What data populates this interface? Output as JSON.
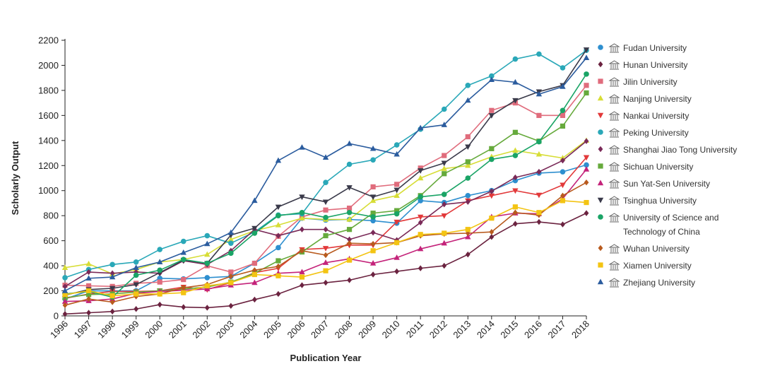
{
  "chart_data": {
    "type": "line",
    "title": "",
    "xlabel": "Publication Year",
    "ylabel": "Scholarly Output",
    "ylim": [
      0,
      2200
    ],
    "yticks": [
      0,
      200,
      400,
      600,
      800,
      1000,
      1200,
      1400,
      1600,
      1800,
      2000,
      2200
    ],
    "grid": false,
    "legend_position": "right",
    "categories": [
      "1996",
      "1997",
      "1998",
      "1999",
      "2000",
      "2001",
      "2002",
      "2003",
      "2004",
      "2005",
      "2006",
      "2007",
      "2008",
      "2009",
      "2010",
      "2011",
      "2012",
      "2013",
      "2014",
      "2015",
      "2016",
      "2017",
      "2018"
    ],
    "series": [
      {
        "name": "Fudan University",
        "color": "#2e8fcf",
        "marker": "circle",
        "values": [
          135,
          200,
          200,
          200,
          300,
          295,
          305,
          315,
          420,
          545,
          780,
          765,
          770,
          760,
          740,
          920,
          905,
          960,
          1000,
          1080,
          1140,
          1150,
          1205
        ]
      },
      {
        "name": "Hunan University",
        "color": "#6b2340",
        "marker": "diamond",
        "values": [
          15,
          25,
          35,
          55,
          90,
          70,
          65,
          80,
          130,
          175,
          245,
          265,
          285,
          330,
          355,
          380,
          400,
          490,
          630,
          735,
          750,
          730,
          820
        ]
      },
      {
        "name": "Jilin University",
        "color": "#e06c7c",
        "marker": "square",
        "values": [
          245,
          240,
          235,
          260,
          270,
          290,
          400,
          350,
          420,
          635,
          790,
          845,
          860,
          1030,
          1050,
          1180,
          1280,
          1430,
          1640,
          1700,
          1600,
          1600,
          1840
        ]
      },
      {
        "name": "Nanjing University",
        "color": "#d7dd36",
        "marker": "triangle-up",
        "values": [
          385,
          415,
          335,
          370,
          430,
          450,
          490,
          610,
          680,
          725,
          780,
          770,
          770,
          920,
          960,
          1100,
          1175,
          1200,
          1270,
          1320,
          1290,
          1260,
          1400
        ]
      },
      {
        "name": "Nankai University",
        "color": "#e2393a",
        "marker": "triangle-down",
        "values": [
          140,
          175,
          195,
          195,
          200,
          230,
          210,
          265,
          345,
          380,
          530,
          540,
          565,
          565,
          750,
          790,
          800,
          920,
          960,
          1000,
          965,
          1045,
          1265
        ]
      },
      {
        "name": "Peking University",
        "color": "#2aa8b8",
        "marker": "circle",
        "values": [
          305,
          370,
          410,
          430,
          530,
          595,
          640,
          580,
          670,
          805,
          815,
          1065,
          1210,
          1245,
          1365,
          1490,
          1650,
          1840,
          1915,
          2050,
          2090,
          1980,
          2120
        ]
      },
      {
        "name": "Shanghai Jiao Tong University",
        "color": "#7a2a58",
        "marker": "diamond",
        "values": [
          235,
          350,
          340,
          350,
          340,
          440,
          410,
          520,
          690,
          640,
          690,
          690,
          610,
          665,
          605,
          745,
          890,
          910,
          995,
          1105,
          1150,
          1240,
          1395
        ]
      },
      {
        "name": "Sichuan University",
        "color": "#66aa3c",
        "marker": "square",
        "values": [
          145,
          170,
          175,
          190,
          200,
          215,
          230,
          270,
          340,
          440,
          510,
          640,
          690,
          820,
          840,
          960,
          1135,
          1230,
          1335,
          1465,
          1395,
          1515,
          1780
        ]
      },
      {
        "name": "Sun Yat-Sen University",
        "color": "#c4237a",
        "marker": "triangle-up",
        "values": [
          115,
          120,
          135,
          180,
          195,
          205,
          215,
          245,
          265,
          340,
          350,
          425,
          455,
          420,
          465,
          535,
          580,
          630,
          790,
          820,
          815,
          935,
          1170
        ]
      },
      {
        "name": "Tsinghua University",
        "color": "#3a3a4a",
        "marker": "triangle-down",
        "values": [
          165,
          210,
          220,
          250,
          345,
          445,
          420,
          645,
          700,
          870,
          950,
          910,
          1025,
          950,
          1005,
          1160,
          1220,
          1350,
          1600,
          1720,
          1790,
          1840,
          2125
        ]
      },
      {
        "name": "University of Science and Technology of China",
        "color": "#1aa466",
        "marker": "circle",
        "values": [
          175,
          195,
          150,
          325,
          365,
          450,
          420,
          500,
          660,
          800,
          825,
          785,
          825,
          790,
          815,
          950,
          970,
          1100,
          1250,
          1280,
          1390,
          1640,
          1930
        ]
      },
      {
        "name": "Wuhan University",
        "color": "#b85a1e",
        "marker": "diamond",
        "values": [
          85,
          135,
          110,
          155,
          175,
          225,
          250,
          315,
          365,
          395,
          520,
          485,
          580,
          575,
          585,
          640,
          655,
          660,
          670,
          825,
          805,
          960,
          1065
        ]
      },
      {
        "name": "Xiamen University",
        "color": "#f3c413",
        "marker": "square",
        "values": [
          170,
          200,
          160,
          175,
          175,
          185,
          240,
          265,
          330,
          320,
          310,
          360,
          445,
          520,
          585,
          650,
          660,
          690,
          780,
          870,
          825,
          920,
          905
        ]
      },
      {
        "name": "Zhejiang University",
        "color": "#2b5c9e",
        "marker": "triangle-up",
        "values": [
          200,
          300,
          310,
          385,
          430,
          505,
          575,
          665,
          920,
          1240,
          1345,
          1265,
          1375,
          1335,
          1290,
          1500,
          1525,
          1720,
          1885,
          1865,
          1770,
          1830,
          2060
        ]
      }
    ]
  },
  "legend_icon": "university-building-icon"
}
